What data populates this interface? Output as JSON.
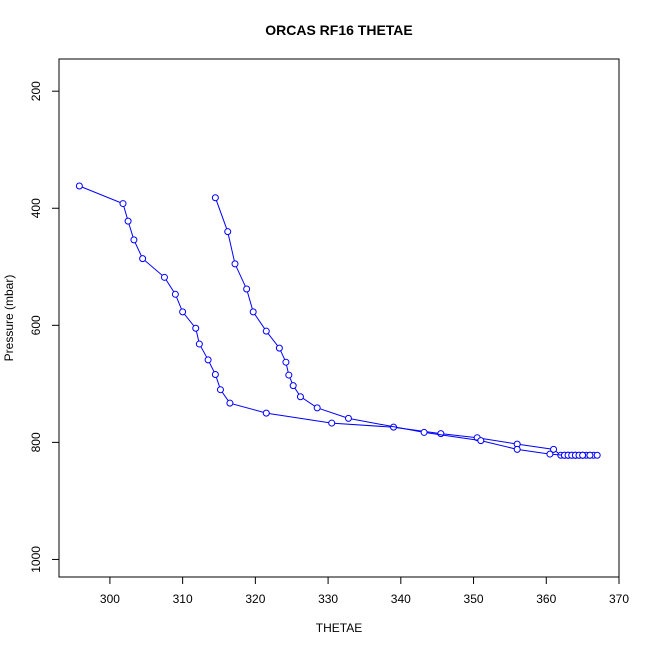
{
  "chart_data": {
    "type": "line",
    "title": "ORCAS RF16 THETAE",
    "xlabel": "THETAE",
    "ylabel": "Pressure (mbar)",
    "xlim": [
      293,
      370
    ],
    "ylim": [
      1030,
      145
    ],
    "y_reversed": true,
    "grid": false,
    "legend": "none",
    "xticks": [
      300,
      310,
      320,
      330,
      340,
      350,
      360,
      370
    ],
    "yticks": [
      200,
      400,
      600,
      800,
      1000
    ],
    "color": "#0000ff",
    "markers": "open-circle",
    "series": [
      {
        "x": [
          295.8,
          301.8,
          302.5,
          303.3,
          304.5,
          307.5,
          309.0,
          310.0,
          311.8,
          312.3,
          313.5,
          314.5,
          315.2,
          316.5,
          321.5,
          330.5,
          339.0,
          345.5,
          350.5,
          356.0,
          361.0,
          362.0,
          362.5,
          363.0,
          363.5,
          364.0,
          364.5,
          365.0,
          365.5,
          366.0,
          366.5,
          367.0,
          366.0,
          365.0,
          364.0,
          363.0
        ],
        "y": [
          362,
          392,
          422,
          454,
          486,
          518,
          547,
          577,
          605,
          632,
          659,
          684,
          710,
          733,
          750,
          767,
          774,
          785,
          792,
          803,
          812,
          822,
          822,
          822,
          822,
          822,
          822,
          822,
          822,
          822,
          822,
          822,
          822,
          822,
          822,
          822
        ]
      },
      {
        "x": [
          314.5,
          316.2,
          317.2,
          318.8,
          319.7,
          321.5,
          323.3,
          324.2,
          324.6,
          325.2,
          326.2,
          328.5,
          332.8,
          343.2,
          351.0,
          356.0,
          360.5,
          362.5,
          363.0,
          363.5,
          364.0,
          364.5,
          365.0
        ],
        "y": [
          382,
          440,
          495,
          538,
          577,
          610,
          639,
          663,
          685,
          703,
          722,
          741,
          759,
          783,
          797,
          812,
          820,
          822,
          822,
          822,
          822,
          822,
          822
        ]
      }
    ]
  }
}
